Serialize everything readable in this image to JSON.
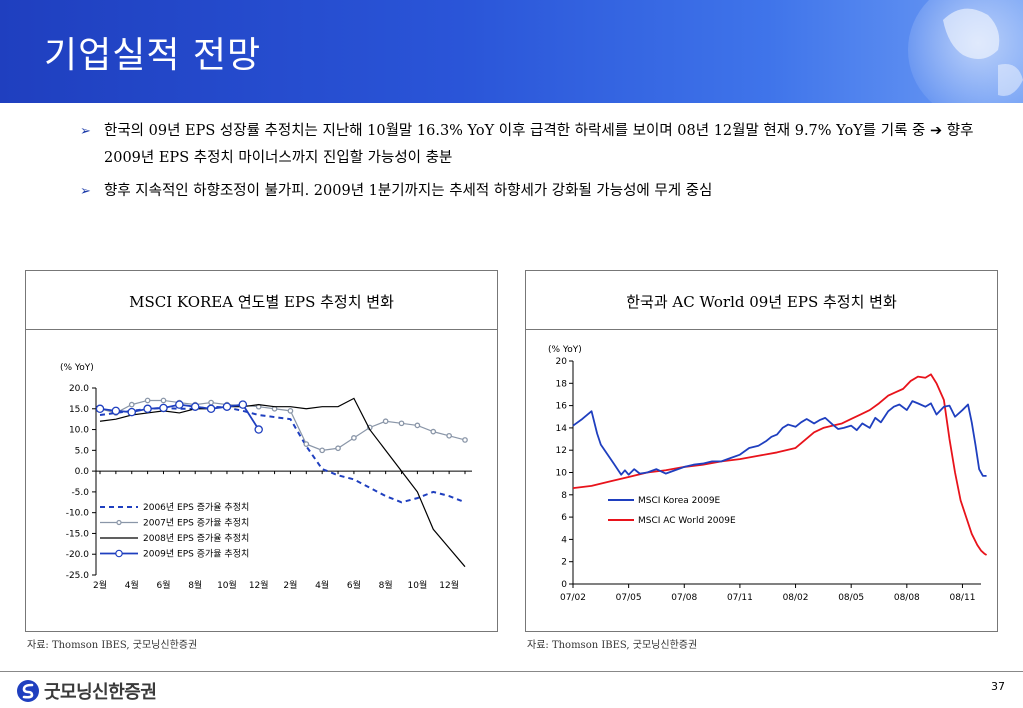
{
  "header": {
    "title": "기업실적 전망"
  },
  "bullets": [
    {
      "text": "한국의 09년 EPS 성장률 추정치는 지난해 10월말 16.3% YoY 이후 급격한 하락세를 보이며 08년 12월말 현재 9.7% YoY를 기록 중 ➔ 향후 2009년 EPS 추정치 마이너스까지 진입할 가능성이 충분"
    },
    {
      "text": "향후 지속적인 하향조정이 불가피. 2009년 1분기까지는 추세적 하향세가 강화될 가능성에 무게 중심"
    }
  ],
  "left_panel": {
    "title": "MSCI KOREA 연도별 EPS 추정치 변화",
    "source": "자료: Thomson IBES, 굿모닝신한증권"
  },
  "right_panel": {
    "title": "한국과 AC World 09년 EPS 추정치 변화",
    "source": "자료: Thomson IBES, 굿모닝신한증권"
  },
  "footer": {
    "company": "굿모닝신한증권",
    "page_number": "37"
  },
  "chart_data": [
    {
      "type": "line",
      "title": "MSCI KOREA 연도별 EPS 추정치 변화",
      "ylabel": "(% YoY)",
      "ylim": [
        -25,
        20
      ],
      "yticks": [
        "20.0",
        "15.0",
        "10.0",
        "5.0",
        "0.0",
        "-5.0",
        "-10.0",
        "-15.0",
        "-20.0",
        "-25.0"
      ],
      "yticks_values": [
        20,
        15,
        10,
        5,
        0,
        -5,
        -10,
        -15,
        -20,
        -25
      ],
      "xtick_labels": [
        "2월",
        "4월",
        "6월",
        "8월",
        "10월",
        "12월",
        "2월",
        "4월",
        "6월",
        "8월",
        "10월",
        "12월"
      ],
      "xtick_index": [
        0,
        2,
        4,
        6,
        8,
        10,
        12,
        14,
        16,
        18,
        20,
        22
      ],
      "x_count": 24,
      "legend_position": "bottom-left",
      "series": [
        {
          "name": "2006년 EPS 증가율 추정치",
          "color": "#1f3fbf",
          "style": "dashed",
          "marker": "none",
          "start": 0,
          "values": [
            13.5,
            14,
            14.5,
            15,
            15.2,
            15,
            15,
            15.5,
            15.3,
            14.5,
            13.5,
            13,
            12.5,
            6,
            0.5,
            -1,
            -2,
            -4,
            -6,
            -7.5,
            -6.5,
            -5,
            -6,
            -7.5
          ]
        },
        {
          "name": "2007년 EPS 증가율 추정치",
          "color": "#8a96a8",
          "style": "solid",
          "marker": "small",
          "start": 0,
          "values": [
            15,
            14,
            16,
            17,
            17,
            16.5,
            16,
            16.5,
            16,
            15.8,
            15.5,
            15,
            14.5,
            6.5,
            5,
            5.5,
            8,
            10.5,
            12,
            11.5,
            11,
            9.5,
            8.5,
            7.5
          ]
        },
        {
          "name": "2008년 EPS 증가율 추정치",
          "color": "#000000",
          "style": "solid",
          "marker": "none",
          "start": 0,
          "values": [
            12,
            12.5,
            13.5,
            14,
            14.5,
            14,
            15,
            15,
            15.5,
            15.5,
            16,
            15.5,
            15.5,
            15,
            15.5,
            15.5,
            17.5,
            10,
            5,
            0,
            -5,
            -14,
            -18.5,
            -23
          ]
        },
        {
          "name": "2009년 EPS 증가율 추정치",
          "color": "#1f3fbf",
          "style": "solid",
          "marker": "large",
          "start": 0,
          "values": [
            15,
            14.5,
            14.2,
            15,
            15.2,
            16,
            15.5,
            15,
            15.5,
            16,
            10
          ]
        }
      ]
    },
    {
      "type": "line",
      "title": "한국과 AC World 09년 EPS 추정치 변화",
      "ylabel": "(% YoY)",
      "ylim": [
        0,
        20
      ],
      "yticks": [
        "20",
        "18",
        "16",
        "14",
        "12",
        "10",
        "8",
        "6",
        "4",
        "2",
        "0"
      ],
      "yticks_values": [
        20,
        18,
        16,
        14,
        12,
        10,
        8,
        6,
        4,
        2,
        0
      ],
      "xtick_labels": [
        "07/02",
        "07/05",
        "07/08",
        "07/11",
        "08/02",
        "08/05",
        "08/08",
        "08/11"
      ],
      "xtick_index": [
        0,
        3,
        6,
        9,
        12,
        15,
        18,
        21
      ],
      "x_count": 23,
      "legend_position": "center-right",
      "series": [
        {
          "name": "MSCI Korea 2009E",
          "color": "#1f3fbf",
          "style": "solid",
          "x": [
            0,
            0.5,
            1,
            1.3,
            1.5,
            2.2,
            2.6,
            2.8,
            3,
            3.3,
            3.6,
            4,
            4.5,
            5,
            5.5,
            6,
            6.5,
            7,
            7.5,
            8,
            8.5,
            9,
            9.5,
            10,
            10.4,
            10.7,
            11,
            11.3,
            11.6,
            12,
            12.3,
            12.6,
            13,
            13.3,
            13.6,
            14,
            14.3,
            14.6,
            15,
            15.3,
            15.6,
            16,
            16.3,
            16.6,
            17,
            17.3,
            17.6,
            18,
            18.3,
            18.6,
            19,
            19.3,
            19.6,
            20,
            20.3,
            20.6,
            21,
            21.3,
            21.5,
            21.7,
            21.9,
            22.1,
            22.3
          ],
          "y": [
            14.2,
            14.8,
            15.5,
            13.5,
            12.5,
            10.8,
            9.8,
            10.2,
            9.8,
            10.3,
            9.9,
            10,
            10.3,
            9.9,
            10.2,
            10.5,
            10.7,
            10.8,
            11,
            11,
            11.3,
            11.6,
            12.2,
            12.4,
            12.8,
            13.2,
            13.4,
            14,
            14.3,
            14.1,
            14.5,
            14.8,
            14.4,
            14.7,
            14.9,
            14.3,
            13.9,
            14,
            14.2,
            13.8,
            14.4,
            14,
            14.9,
            14.5,
            15.5,
            15.9,
            16.1,
            15.6,
            16.4,
            16.2,
            15.9,
            16.2,
            15.2,
            15.9,
            16,
            15,
            15.6,
            16.1,
            14.5,
            12.5,
            10.3,
            9.7,
            9.7
          ]
        },
        {
          "name": "MSCI AC World 2009E",
          "color": "#e8131b",
          "style": "solid",
          "x": [
            0,
            1,
            2,
            3,
            4,
            5,
            6,
            7,
            8,
            9,
            10,
            11,
            12,
            13,
            13.5,
            14,
            14.5,
            15,
            15.5,
            16,
            16.5,
            17,
            17.4,
            17.8,
            18.2,
            18.6,
            19,
            19.3,
            19.6,
            20,
            20.3,
            20.6,
            20.9,
            21.2,
            21.5,
            21.8,
            22,
            22.2,
            22.3
          ],
          "y": [
            8.6,
            8.8,
            9.2,
            9.6,
            10,
            10.2,
            10.5,
            10.7,
            11,
            11.2,
            11.5,
            11.8,
            12.2,
            13.6,
            14,
            14.2,
            14.4,
            14.8,
            15.2,
            15.6,
            16.2,
            16.9,
            17.2,
            17.5,
            18.2,
            18.6,
            18.5,
            18.8,
            18,
            16.5,
            13,
            10,
            7.5,
            6,
            4.5,
            3.5,
            3,
            2.7,
            2.6
          ]
        }
      ]
    }
  ]
}
